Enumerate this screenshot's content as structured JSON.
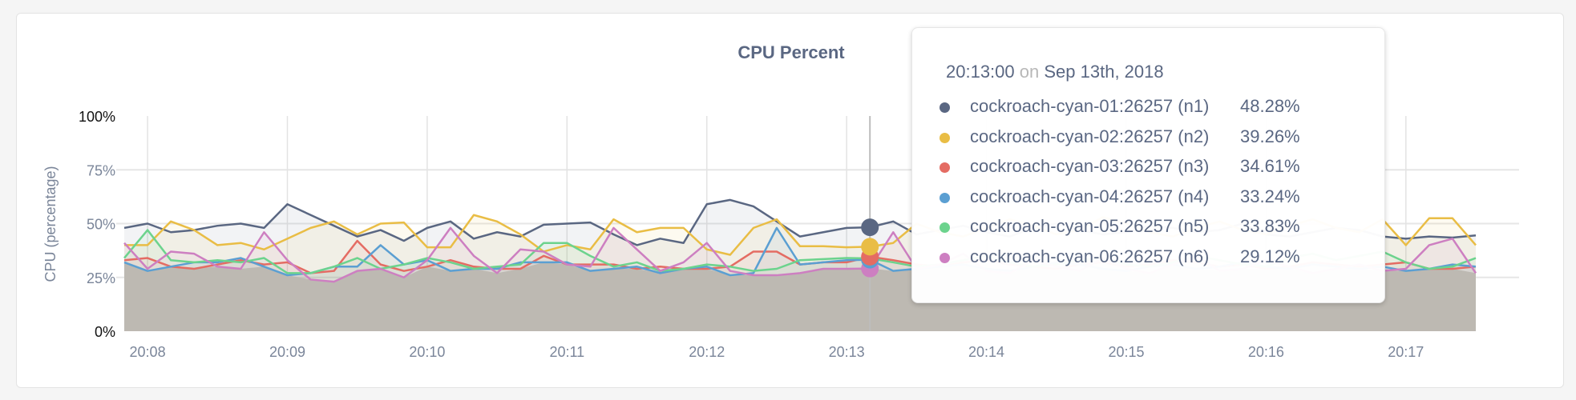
{
  "chart_data": {
    "type": "area",
    "title": "CPU Percent",
    "ylabel": "CPU (percentage)",
    "xlabel": "",
    "ylim": [
      0,
      100
    ],
    "yticks": [
      "0%",
      "25%",
      "50%",
      "75%",
      "100%"
    ],
    "xticks": [
      "20:08",
      "20:09",
      "20:10",
      "20:11",
      "20:12",
      "20:13",
      "20:14",
      "20:15",
      "20:16",
      "20:17"
    ],
    "grid": true,
    "base_fill_color": "#d4d1cc",
    "sample_interval_seconds": 10,
    "series": [
      {
        "name": "cockroach-cyan-01:26257 (n1)",
        "color": "#5a6782",
        "values": [
          48,
          50,
          46,
          47,
          49,
          50,
          48,
          59,
          54,
          49,
          44,
          47,
          42,
          48,
          51,
          43,
          46,
          44,
          49.5,
          50,
          50.5,
          45,
          40,
          43,
          41,
          59,
          61,
          58,
          51,
          44,
          46,
          48,
          48.28,
          51,
          45,
          47,
          49,
          46,
          44,
          48,
          50,
          47,
          45,
          46,
          49,
          48,
          46,
          47,
          50,
          45,
          44,
          46,
          48,
          47,
          44,
          43,
          44,
          43.5,
          44.5
        ]
      },
      {
        "name": "cockroach-cyan-02:26257 (n2)",
        "color": "#e9bd45",
        "values": [
          40,
          40,
          51,
          47,
          40,
          41,
          38,
          43,
          48,
          51,
          45,
          50,
          50.5,
          39,
          39,
          54,
          51,
          45,
          37,
          40,
          38,
          52,
          46,
          48,
          48,
          38,
          35.5,
          48,
          52,
          39.5,
          39.5,
          39,
          39.26,
          41,
          50,
          46,
          44,
          48,
          52,
          49,
          45,
          47,
          53,
          50,
          46,
          44,
          48,
          51,
          47,
          45,
          49,
          52,
          48,
          46,
          52,
          40,
          52.5,
          52.5,
          40
        ]
      },
      {
        "name": "cockroach-cyan-03:26257 (n3)",
        "color": "#e46c63",
        "values": [
          33,
          34,
          30,
          29,
          31,
          33,
          31,
          32,
          27,
          28,
          42,
          31,
          28,
          30,
          33,
          30,
          29,
          29,
          35,
          31,
          31,
          31,
          29,
          30,
          29,
          29,
          30,
          37,
          37,
          31,
          32,
          32,
          34.61,
          33,
          31,
          30,
          32,
          33,
          31,
          30,
          29,
          31,
          32,
          30,
          31,
          33,
          32,
          30,
          31,
          29,
          30,
          32,
          31,
          30,
          31,
          32,
          29,
          29,
          30
        ]
      },
      {
        "name": "cockroach-cyan-04:26257 (n4)",
        "color": "#5b9fd2",
        "values": [
          32,
          28,
          30,
          32,
          32,
          34,
          30,
          26,
          27,
          30,
          30,
          40,
          31,
          33,
          28,
          29,
          29,
          32,
          32,
          32,
          28,
          29,
          30,
          27,
          29,
          30,
          26,
          27,
          48,
          31,
          32,
          33,
          33.24,
          28,
          29,
          30,
          31,
          29,
          28,
          30,
          32,
          31,
          29,
          28,
          30,
          31,
          29,
          30,
          32,
          30,
          29,
          31,
          30,
          29,
          30,
          28,
          29,
          31,
          30
        ]
      },
      {
        "name": "cockroach-cyan-05:26257 (n5)",
        "color": "#6cd38d",
        "values": [
          34,
          47,
          33,
          32,
          33,
          32,
          34,
          27,
          27,
          30,
          34,
          29,
          31,
          34,
          32,
          29,
          30,
          31,
          41,
          41,
          35,
          30,
          32,
          28,
          29,
          31,
          30,
          28,
          29,
          33,
          33.5,
          34,
          33.83,
          32,
          30,
          31,
          33,
          35,
          32,
          30,
          31,
          33,
          34,
          31,
          30,
          32,
          35,
          33,
          31,
          30,
          34,
          36,
          33,
          35,
          37,
          32,
          29,
          30,
          34
        ]
      },
      {
        "name": "cockroach-cyan-06:26257 (n6)",
        "color": "#cd7fc1",
        "values": [
          41,
          29,
          37,
          36,
          30,
          29,
          46,
          33,
          24,
          23,
          28,
          29,
          25,
          33,
          48,
          35,
          27,
          38,
          37,
          31,
          30,
          48,
          38,
          28,
          32,
          41,
          28,
          26,
          26,
          27,
          29,
          29,
          29.12,
          46,
          29,
          31,
          36,
          28,
          27,
          33,
          30,
          28,
          34,
          29,
          27,
          31,
          35,
          28,
          29,
          33,
          30,
          27,
          29,
          31,
          28,
          29,
          40,
          43,
          27
        ]
      }
    ]
  },
  "tooltip": {
    "time": "20:13:00",
    "on": "on",
    "date": "Sep 13th, 2018",
    "hover_index": 32,
    "rows": [
      {
        "label": "cockroach-cyan-01:26257 (n1)",
        "value": "48.28%"
      },
      {
        "label": "cockroach-cyan-02:26257 (n2)",
        "value": "39.26%"
      },
      {
        "label": "cockroach-cyan-03:26257 (n3)",
        "value": "34.61%"
      },
      {
        "label": "cockroach-cyan-04:26257 (n4)",
        "value": "33.24%"
      },
      {
        "label": "cockroach-cyan-05:26257 (n5)",
        "value": "33.83%"
      },
      {
        "label": "cockroach-cyan-06:26257 (n6)",
        "value": "29.12%"
      }
    ]
  }
}
